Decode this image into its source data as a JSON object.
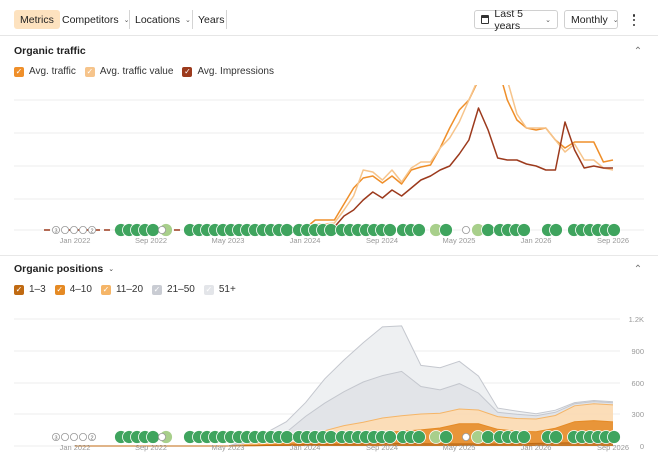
{
  "toolbar": {
    "tabs": [
      {
        "label": "Metrics",
        "active": true
      },
      {
        "label": "Competitors",
        "has_dropdown": true
      },
      {
        "label": "Locations",
        "has_dropdown": true
      },
      {
        "label": "Years"
      }
    ],
    "date_range": "Last 5 years",
    "interval": "Monthly",
    "date_icon": "calendar-icon",
    "menu_icon": "kebab-menu-icon"
  },
  "traffic": {
    "title": "Organic traffic",
    "legend": [
      {
        "label": "Avg. traffic",
        "color": "#ef8f2a"
      },
      {
        "label": "Avg. traffic value",
        "color": "#f6c48b"
      },
      {
        "label": "Avg. Impressions",
        "color": "#9c3a1d"
      }
    ],
    "x_labels": [
      "Jan 2022",
      "Sep 2022",
      "May 2023",
      "Jan 2024",
      "Sep 2024",
      "May 2025",
      "Jan 2026",
      "Sep 2026"
    ],
    "early_markers": [
      "3",
      "2"
    ]
  },
  "positions": {
    "title": "Organic positions",
    "legend": [
      {
        "label": "1–3",
        "color": "#c06a12"
      },
      {
        "label": "4–10",
        "color": "#e58a24"
      },
      {
        "label": "11–20",
        "color": "#f5b567"
      },
      {
        "label": "21–50",
        "color": "#c9ccd3"
      },
      {
        "label": "51+",
        "color": "#e3e5e9"
      }
    ],
    "y_ticks": [
      "1.2K",
      "900",
      "600",
      "300",
      "0"
    ],
    "x_labels": [
      "Jan 2022",
      "Sep 2022",
      "May 2023",
      "Jan 2024",
      "Sep 2024",
      "May 2025",
      "Jan 2026",
      "Sep 2026"
    ],
    "early_markers": [
      "3",
      "2"
    ]
  },
  "chart_data": [
    {
      "type": "line",
      "title": "Organic traffic",
      "x": [
        "2024-01",
        "2024-02",
        "2024-03",
        "2024-04",
        "2024-05",
        "2024-06",
        "2024-07",
        "2024-08",
        "2024-09",
        "2024-10",
        "2024-11",
        "2024-12",
        "2025-01",
        "2025-02",
        "2025-03",
        "2025-04",
        "2025-05",
        "2025-06",
        "2025-07",
        "2025-08",
        "2025-09",
        "2025-10",
        "2025-11",
        "2025-12",
        "2026-01",
        "2026-02",
        "2026-03",
        "2026-04",
        "2026-05",
        "2026-06",
        "2026-07",
        "2026-08",
        "2026-09"
      ],
      "series": [
        {
          "name": "Avg. traffic",
          "values": [
            2,
            10,
            10,
            10,
            26,
            42,
            52,
            54,
            47,
            54,
            46,
            60,
            63,
            65,
            82,
            102,
            120,
            130,
            150,
            172,
            164,
            130,
            110,
            102,
            100,
            102,
            90,
            82,
            88,
            88,
            88,
            68,
            70
          ]
        },
        {
          "name": "Avg. traffic value",
          "values": [
            2,
            6,
            6,
            7,
            20,
            34,
            60,
            58,
            50,
            60,
            48,
            62,
            68,
            68,
            82,
            92,
            108,
            130,
            152,
            170,
            170,
            150,
            116,
            102,
            102,
            102,
            90,
            78,
            86,
            70,
            70,
            62,
            60
          ]
        },
        {
          "name": "Avg. Impressions",
          "values": [
            0,
            2,
            2,
            3,
            14,
            20,
            30,
            38,
            32,
            40,
            34,
            42,
            50,
            54,
            60,
            64,
            76,
            90,
            122,
            100,
            72,
            70,
            70,
            66,
            64,
            60,
            60,
            108,
            80,
            62,
            64,
            62,
            62
          ]
        }
      ]
    },
    {
      "type": "area",
      "title": "Organic positions",
      "x": [
        "2022-01",
        "2022-09",
        "2023-05",
        "2023-07",
        "2023-09",
        "2023-11",
        "2024-01",
        "2024-03",
        "2024-05",
        "2024-07",
        "2024-09",
        "2024-11",
        "2025-01",
        "2025-03",
        "2025-05",
        "2025-07",
        "2025-09",
        "2025-11",
        "2026-01",
        "2026-03",
        "2026-05",
        "2026-07",
        "2026-09"
      ],
      "ylim": [
        0,
        1200
      ],
      "y_ticks": [
        0,
        300,
        600,
        900,
        1200
      ],
      "series": [
        {
          "name": "1–3",
          "values": [
            0,
            0,
            0,
            2,
            5,
            10,
            15,
            15,
            18,
            20,
            25,
            25,
            22,
            20,
            20,
            20,
            18,
            20,
            25,
            28,
            30,
            30,
            28
          ]
        },
        {
          "name": "4–10",
          "values": [
            0,
            0,
            0,
            5,
            10,
            15,
            25,
            35,
            55,
            75,
            100,
            115,
            130,
            150,
            190,
            190,
            140,
            120,
            110,
            140,
            200,
            210,
            200
          ]
        },
        {
          "name": "11–20",
          "values": [
            0,
            0,
            0,
            10,
            15,
            25,
            60,
            95,
            120,
            130,
            140,
            145,
            150,
            140,
            140,
            130,
            120,
            120,
            120,
            120,
            150,
            160,
            160
          ]
        },
        {
          "name": "21–50",
          "values": [
            0,
            0,
            0,
            20,
            40,
            80,
            180,
            260,
            320,
            380,
            400,
            420,
            260,
            220,
            240,
            160,
            40,
            40,
            30,
            30,
            20,
            20,
            20
          ]
        },
        {
          "name": "51+",
          "values": [
            0,
            0,
            0,
            25,
            60,
            100,
            130,
            230,
            300,
            370,
            460,
            430,
            200,
            210,
            210,
            160,
            40,
            30,
            20,
            20,
            10,
            10,
            10
          ]
        }
      ]
    }
  ]
}
